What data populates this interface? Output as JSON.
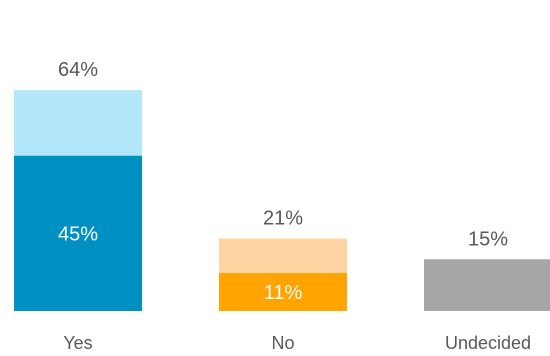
{
  "chart_data": {
    "type": "bar",
    "categories": [
      "Yes",
      "No",
      "Undecided"
    ],
    "series": [
      {
        "values": [
          45,
          11,
          null
        ],
        "labels": [
          "45%",
          "11%",
          ""
        ]
      },
      {
        "values": [
          64,
          21,
          15
        ],
        "labels": [
          "64%",
          "21%",
          "15%"
        ]
      }
    ],
    "ylim": [
      0,
      70
    ],
    "grid": false,
    "colors": {
      "Yes": {
        "inner": "#0091C2",
        "outer": "#B3E8FC"
      },
      "No": {
        "inner": "#FFA400",
        "outer": "#FFD4A3"
      },
      "Undecided": {
        "inner": "#A6A6A6",
        "outer": "#A6A6A6"
      }
    },
    "label_colors": {
      "outer": "#595959",
      "inner": "#ffffff",
      "category": "#595959"
    }
  }
}
